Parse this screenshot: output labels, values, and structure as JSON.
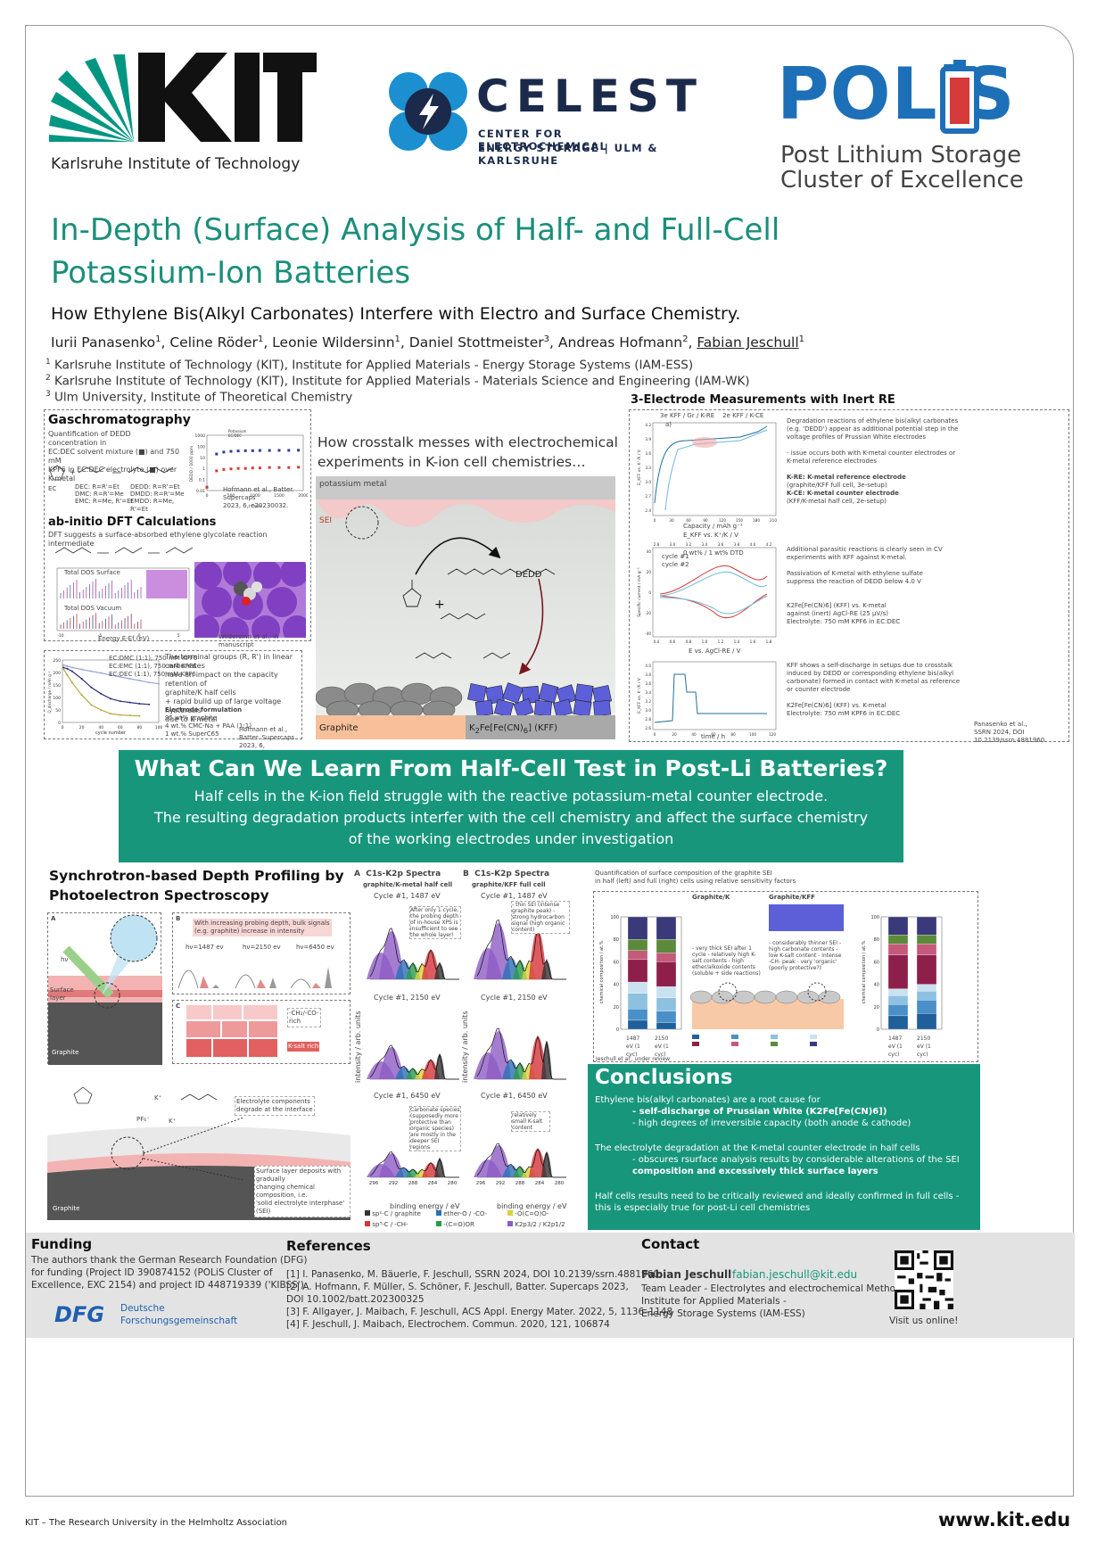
{
  "header": {
    "kit_subtitle": "Karlsruhe Institute of Technology",
    "celest_word": "CELEST",
    "celest_sub1": "CENTER FOR ELECTROCHEMICAL",
    "celest_sub2": "ENERGY STORAGE | ULM & KARLSRUHE",
    "polis_word": "POLiS",
    "polis_sub1": "Post Lithium Storage",
    "polis_sub2": "Cluster of Excellence"
  },
  "title_line1": "In-Depth (Surface) Analysis of Half- and Full-Cell",
  "title_line2": "Potassium-Ion Batteries",
  "subtitle": "How Ethylene Bis(Alkyl Carbonates) Interfere with Electro and Surface Chemistry.",
  "authors": [
    {
      "name": "Iurii Panasenko",
      "aff": "1"
    },
    {
      "name": "Celine Röder",
      "aff": "1"
    },
    {
      "name": "Leonie Wildersinn",
      "aff": "1"
    },
    {
      "name": "Daniel Stottmeister",
      "aff": "3"
    },
    {
      "name": "Andreas Hofmann",
      "aff": "2"
    },
    {
      "name": "Fabian Jeschull",
      "aff": "1"
    }
  ],
  "affiliations": [
    {
      "num": "1",
      "text": "Karlsruhe Institute of Technology (KIT), Institute for Applied Materials - Energy Storage Systems (IAM-ESS)"
    },
    {
      "num": "2",
      "text": "Karlsruhe Institute of Technology (KIT), Institute for Applied Materials - Materials Science and Engineering (IAM-WK)"
    },
    {
      "num": "3",
      "text": "Ulm University, Institute of Theoretical Chemistry"
    }
  ],
  "gc": {
    "title": "Gaschromatography",
    "text1": "Quantification of DEDD concentration in",
    "text2": "EC:DEC solvent mixture (■) and 750 mM",
    "text3": "KPF6 in EC:DEC electrolyte (■) over K-metal",
    "ref1": "Hofmann et al., Batter. Supercaps",
    "ref2": "2023, 6, e20230032.",
    "legend1": "Potassium",
    "legend2": "EC/DEC",
    "ylabel": "DEDD / 1000 ppm",
    "xlabel": "t / min",
    "chem1": "DEC: R=R'=Et",
    "chem2": "DMC: R=R'=Me",
    "chem3": "EMC: R=Me, R'=Et",
    "chem4": "DEDD: R=R'=Et",
    "chem5": "DMDD: R=R'=Me",
    "chem6": "EMDD: R=Me, R'=Et",
    "chem_ec": "EC"
  },
  "gc_chart": {
    "type": "scatter",
    "x_ticks": [
      "0",
      "500",
      "1000",
      "1500",
      "2000"
    ],
    "y_ticks": [
      "1000",
      "100",
      "10",
      "1",
      "0.1",
      "0.01"
    ],
    "series": [
      {
        "name": "Potassium",
        "color": "#2c3e9c",
        "x": [
          0,
          200,
          350,
          500,
          650,
          800,
          950,
          1100,
          1300,
          1500,
          1700,
          1900
        ],
        "y": [
          0.02,
          20,
          30,
          35,
          38,
          40,
          40,
          42,
          42,
          43,
          43,
          44
        ]
      },
      {
        "name": "EC/DEC",
        "color": "#d63a3a",
        "x": [
          0,
          200,
          350,
          500,
          650,
          800,
          950,
          1100,
          1300,
          1500,
          1700,
          1900
        ],
        "y": [
          0.02,
          0.6,
          0.8,
          0.9,
          1.0,
          1.0,
          1.1,
          1.1,
          1.2,
          1.2,
          1.2,
          1.3
        ]
      }
    ]
  },
  "dft": {
    "title": "ab-initio DFT Calculations",
    "text": "DFT suggests a surface-absorbed ethylene glycolate reaction intermediate",
    "credit": "Wildersinn et al., in manuscript",
    "dos_top": "Total DOS Surface",
    "dos_bottom": "Total DOS Vacuum",
    "xlabel": "Energy E-Ef (eV)",
    "ylabel": "Density of states (arb. units)",
    "tick1": "-10",
    "tick2": "-5",
    "tick3": "0",
    "tick4": "5"
  },
  "cycling": {
    "text1": "The terminal groups (R, R') in linear carbonates",
    "text2": "have an impact on the capacity retention of",
    "text3": "graphite/K half cells",
    "text4": "+ rapid build up of large voltage hysteresis",
    "text5": "due to K-metal",
    "form_title": "Electrode formulation",
    "form1": "95 wt% graphite",
    "form2": "4 wt.% CMC-Na + PAA (1:1)",
    "form3": "1 wt.% SuperC65",
    "ref1": "Hofmann et al., Batter. Supercaps",
    "ref2": "2023, 6, e20230032.",
    "ylabel": "Q_discharge / mAh g⁻¹",
    "xlabel": "cycle number",
    "legend": [
      "EC:DMC (1:1), 750 mM KPF6",
      "EC:EMC (1:1), 750 mM KPF6",
      "EC:DEC (1:1), 750 mM KPF6"
    ]
  },
  "cycling_chart": {
    "type": "line",
    "x_ticks": [
      "0",
      "20",
      "40",
      "60",
      "80",
      "100"
    ],
    "y_ticks": [
      "250",
      "200",
      "150",
      "100",
      "50",
      "0"
    ],
    "xlim": [
      0,
      100
    ],
    "ylim": [
      0,
      250
    ],
    "series": [
      {
        "color": "#9aa7d8",
        "x": [
          1,
          5,
          10,
          20,
          30,
          40,
          50,
          60,
          70,
          80,
          90,
          100
        ],
        "y": [
          230,
          225,
          220,
          212,
          205,
          198,
          190,
          182,
          175,
          168,
          160,
          155
        ]
      },
      {
        "color": "#2b2f7a",
        "x": [
          1,
          5,
          10,
          20,
          30,
          40,
          50,
          60,
          70,
          80,
          90
        ],
        "y": [
          220,
          215,
          205,
          175,
          140,
          115,
          95,
          85,
          80,
          75,
          72
        ]
      },
      {
        "color": "#b5a93a",
        "x": [
          1,
          5,
          10,
          20,
          30,
          40,
          50,
          60,
          70,
          80
        ],
        "y": [
          215,
          190,
          160,
          110,
          70,
          50,
          35,
          30,
          28,
          26
        ]
      }
    ]
  },
  "crosstalk": {
    "title1": "How crosstalk messes with electrochemical",
    "title2": "experiments in K-ion cell chemistries…",
    "k_metal": "potassium metal",
    "sei": "SEI",
    "dedd": "DEDD",
    "graphite": "Graphite",
    "kff_prefix": "K",
    "kff_mid": "Fe[Fe(CN)",
    "kff_suffix": "] (KFF)"
  },
  "three_electrode": {
    "title": "3-Electrode Measurements with Inert RE",
    "desc_a1": "Degradation reactions of ethylene bis(alkyl carbonates",
    "desc_a2": "(e.g. 'DEDD') appear as additional potential step in the",
    "desc_a3": "voltage profiles of Prussian White electrodes",
    "desc_a4": "- issue occurs both with K-metal counter electrodes or",
    "desc_a5": "K-metal reference electrodes",
    "kre": "K-RE: K-metal reference electrode",
    "kre2": "(graphite/KFF full cell, 3e-setup)",
    "kce": "K-CE: K-metal counter electrode",
    "kce2": "(KFF/K-metal half cell, 2e-setup)",
    "legend1": "3e KFF / Gr / K-RE",
    "legend2": "2e KFF / K-CE",
    "a_label": "a)",
    "a_xlabel": "Capacity / mAh g⁻¹",
    "a_ylabel": "E_KFF vs. K⁺/K / V",
    "b_top_label": "E_KFF vs. K⁺/K / V",
    "desc_b1": "Additional parasitic reactions is clearly seen in CV",
    "desc_b2": "experiments with KFF against K-metal.",
    "desc_b3": "Passivation of K-metal with ethylene sulfate",
    "desc_b4": "suppress the reaction of DEDD below 4.0 V",
    "desc_b5": "K2Fe[Fe(CN)6] (KFF) vs. K-metal",
    "desc_b6": "against (inert) AgCl-RE (25 μV/s)",
    "desc_b7": "Electrolyte: 750 mM KPF6 in EC:DEC",
    "b_cycle1": "cycle #1",
    "b_cycle2": "cycle #2",
    "b_dtd": "0 wt% / 1 wt% DTD",
    "b_xlabel": "E vs. AgCl-RE / V",
    "b_ylabel": "Specific current / mA g⁻¹",
    "desc_c1": "KFF shows a self-discharge in setups due to crosstalk",
    "desc_c2": "induced by DEDD or corresponding ethylene bis(alkyl",
    "desc_c3": "carbonate) formed in contact with K-metal as reference",
    "desc_c4": "or counter electrode",
    "desc_c5": "K2Fe[Fe(CN)6] (KFF) vs. K-metal",
    "desc_c6": "Electrolyte: 750 mM KPF6 in EC:DEC",
    "c_xlabel": "time / h",
    "c_ylabel": "E_KFF vs. K⁺/K / V",
    "ref1": "Panasenko et al.,",
    "ref2": "SSRN 2024, DOI 10.2139/ssrn.4881960."
  },
  "band": {
    "title": "What Can We Learn From Half-Cell Test in Post-Li Batteries?",
    "line1": "Half cells in the K-ion field struggle with the reactive potassium-metal counter electrode.",
    "line2": "The resulting degradation products interfer with the cell chemistry and affect the surface chemistry",
    "line3": "of the working electrodes under investigation"
  },
  "synchro": {
    "title1": "Synchrotron-based Depth Profiling by",
    "title2": "Photoelectron Spectroscopy",
    "panel_a": "A",
    "panel_b": "B",
    "panel_c": "C",
    "hv": "hν",
    "surface_layer": "Surface layer",
    "graphite": "Graphite",
    "b_text1": "With increasing probing depth, bulk signals",
    "b_text2": "(e.g. graphite) increase in intensity",
    "hv1": "hν=1487 ev",
    "hv2": "hν=2150 ev",
    "hv3": "hν=6450 ev",
    "c_ch": "-CH₂/-CO-",
    "c_rich": "rich",
    "c_ksalt": "K-salt rich",
    "decomp1": "Electrolyte components",
    "decomp2": "degrade at the interface",
    "deposit1": "Surface layer deposits with gradually",
    "deposit2": "changing chemical composition, i.e.",
    "deposit3": "'solid electrolyte interphase' (SEI)",
    "pf6": "PF₆⁻",
    "kplus": "K⁺"
  },
  "xps": {
    "a_title": "C1s-K2p Spectra",
    "a_sub": "graphite/K-metal half cell",
    "b_title": "C1s-K2p Spectra",
    "b_sub": "graphite/KFF full cell",
    "label_a": "A",
    "label_b": "B",
    "cycles": [
      "Cycle #1, 1487 eV",
      "Cycle #1, 2150 eV",
      "Cycle #1, 6450 eV"
    ],
    "note_a1": "After only 1 cycle, the probing depth of in-house XPS is insufficient to see the whole layer!",
    "note_a3": "Carbonate species (supposedly more protective than organic species) are mostly in the deeper SEI regions",
    "note_b1": "- thin SEI (intense graphite peak) - strong hydrocarbon signal (high organic content)",
    "note_b3": "relatively small K-salt content",
    "ylabel": "intensity / arb. units",
    "xlabel": "binding energy / eV",
    "x_ticks": [
      "296",
      "292",
      "288",
      "284",
      "280"
    ],
    "legend": [
      {
        "label": "sp²-C / graphite",
        "color": "#333333"
      },
      {
        "label": "ether-O / -CO-",
        "color": "#2a6fb8"
      },
      {
        "label": "-O(C=O)O-",
        "color": "#d9d23a"
      },
      {
        "label": "sp³-C / -CH-",
        "color": "#d6333a"
      },
      {
        "label": "-(C=O)OR",
        "color": "#2b9a4a"
      },
      {
        "label": "K2p3/2 / K2p1/2",
        "color": "#8d5bc4"
      }
    ]
  },
  "composition": {
    "intro1": "Quantification of surface composition of the graphite SEI",
    "intro2": "in half (left) and full (right) cells using relative sensitivity factors",
    "gk_title": "Graphite/K",
    "gkff_title": "Graphite/KFF",
    "gk_notes": "- very thick SEI after 1 cycle - relatively high K-salt contents - high ether/alkoxide contents (soluble + side reactions)",
    "gkff_notes": "- considerably thinner SEI - high carbonate contents - low K-salt content - intense -CH- peak - very 'organic' (poorly protective?)",
    "ylabel": "chemical composition / at.%",
    "bar_labels_left": [
      "1487 eV (1 cyc)",
      "2150 eV (1 cyc)"
    ],
    "bar_labels_right": [
      "1487 eV (1 cyc)",
      "2150 eV (1 cyc)"
    ],
    "credit": "Jeschull et al., under review",
    "y_ticks": [
      "100",
      "80",
      "60",
      "40",
      "20",
      "0"
    ]
  },
  "composition_chart": {
    "type": "bar",
    "categories": [
      "Half 1487 eV",
      "Half 2150 eV",
      "Full 1487 eV",
      "Full 2150 eV"
    ],
    "ylim": [
      0,
      100
    ],
    "segments_colors": [
      "#1f5f9a",
      "#4a90c8",
      "#8ec0e0",
      "#c9e2f0",
      "#8e1f4a",
      "#c45a7a",
      "#5a8a3a",
      "#3a3a7a"
    ],
    "values": [
      [
        8,
        10,
        14,
        10,
        20,
        8,
        10,
        20
      ],
      [
        6,
        10,
        12,
        10,
        22,
        8,
        12,
        20
      ],
      [
        12,
        10,
        8,
        6,
        30,
        10,
        8,
        16
      ],
      [
        14,
        12,
        8,
        6,
        26,
        10,
        8,
        16
      ]
    ]
  },
  "conclusions": {
    "title": "Conclusions",
    "l1": "Ethylene bis(alkyl carbonates) are a root cause for",
    "l2": "- self-discharge of Prussian White (K2Fe[Fe(CN)6])",
    "l3": "- high degrees of irreversible capacity (both anode & cathode)",
    "l4": "The electrolyte degradation at the K-metal counter electrode in half cells",
    "l5": "- obscures rsurface analysis results by considerable alterations of the SEI",
    "l6": "composition and excessively thick surface layers",
    "l7": "Half cells results need to be critically reviewed and ideally confirmed in full cells -",
    "l8": "this is especially true for post-Li cell chemistries"
  },
  "footer": {
    "funding_title": "Funding",
    "funding_text1": "The authors thank the German Research Foundation (DFG)",
    "funding_text2": "for funding (Project ID 390874152 (POLiS Cluster of",
    "funding_text3": "Excellence, EXC 2154) and project ID 448719339 ('KIBSS').",
    "dfg_logo": "DFG",
    "dfg_sub1": "Deutsche",
    "dfg_sub2": "Forschungsgemeinschaft",
    "refs_title": "References",
    "refs": [
      "[1] I. Panasenko, M. Bäuerle, F. Jeschull, SSRN 2024, DOI 10.2139/ssrn.4881960",
      "[2] A. Hofmann, F. Müller, S. Schöner, F. Jeschull, Batter. Supercaps 2023,",
      "DOI 10.1002/batt.202300325",
      "[3] F. Allgayer, J. Maibach, F. Jeschull, ACS Appl. Energy Mater. 2022, 5, 1136–1148",
      "[4] F. Jeschull, J. Maibach, Electrochem. Commun. 2020, 121, 106874"
    ],
    "contact_title": "Contact",
    "contact_name": "Fabian Jeschull",
    "contact_email": "fabian.jeschull@kit.edu",
    "contact_role1": "Team Leader - Electrolytes and electrochemical Methods",
    "contact_role2": "Institute for Applied Materials -",
    "contact_role3": "Energy Storage Systems (IAM-ESS)",
    "visit": "Visit us online!"
  },
  "bottom": {
    "left": "KIT – The Research University in the Helmholtz Association",
    "right": "www.kit.edu"
  },
  "colors": {
    "teal": "#17967c",
    "kit_green": "#009682",
    "celest_blue": "#1b2a4a",
    "polis_blue": "#1d6fb8",
    "polis_red": "#d63a3a"
  }
}
